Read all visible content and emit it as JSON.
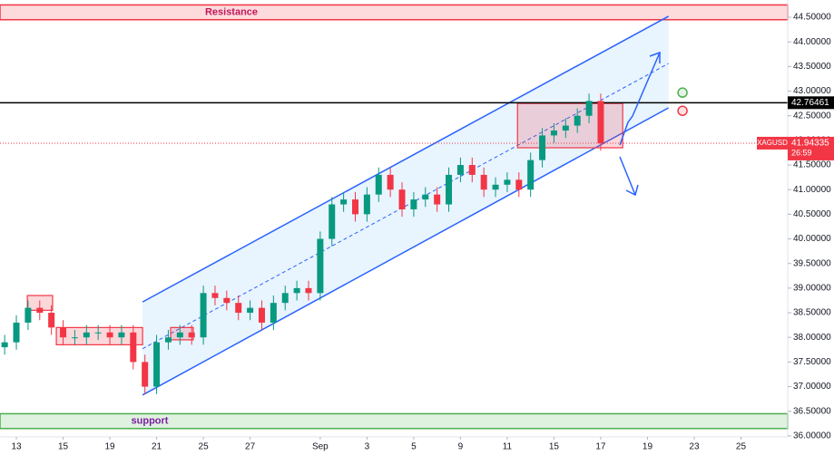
{
  "chart_data": {
    "type": "candlestick",
    "symbol": "XAGUSD",
    "x": [
      -0.5,
      0,
      0.5,
      1,
      1.5,
      2,
      2.5,
      3,
      3.5,
      4,
      4.5,
      5,
      5.5,
      6,
      6.5,
      7,
      7.5,
      8,
      8.5,
      9,
      9.5,
      10,
      10.5,
      11,
      11.5,
      12,
      12.5,
      13,
      13.5,
      14,
      14.5,
      15,
      15.5,
      16,
      16.5,
      17,
      17.5,
      18,
      18.5,
      19,
      19.5,
      20,
      20.5,
      21,
      21.5,
      22,
      22.5,
      23,
      23.5,
      24,
      24.5,
      25
    ],
    "open": [
      37.8,
      37.9,
      38.3,
      38.6,
      38.5,
      38.2,
      38.0,
      38.0,
      38.1,
      38.1,
      38.0,
      38.1,
      37.5,
      37.0,
      37.9,
      38.0,
      38.1,
      38.0,
      38.9,
      38.8,
      38.7,
      38.5,
      38.6,
      38.3,
      38.7,
      38.9,
      39.0,
      38.9,
      40.0,
      40.7,
      40.8,
      40.5,
      40.9,
      41.3,
      41.0,
      40.6,
      40.8,
      40.9,
      40.7,
      41.3,
      41.5,
      41.3,
      41.0,
      41.1,
      41.2,
      41.0,
      41.6,
      42.1,
      42.2,
      42.3,
      42.5,
      42.8
    ],
    "high": [
      38.05,
      38.45,
      38.75,
      38.75,
      38.65,
      38.35,
      38.15,
      38.25,
      38.25,
      38.25,
      38.25,
      38.25,
      37.65,
      38.05,
      38.15,
      38.25,
      38.25,
      39.05,
      39.05,
      38.95,
      38.85,
      38.75,
      38.75,
      38.85,
      39.05,
      39.15,
      39.15,
      40.15,
      40.85,
      40.95,
      40.95,
      41.05,
      41.45,
      41.45,
      41.15,
      40.95,
      41.05,
      41.05,
      41.45,
      41.65,
      41.65,
      41.45,
      41.25,
      41.35,
      41.35,
      41.75,
      42.25,
      42.35,
      42.45,
      42.65,
      42.95,
      42.95
    ],
    "low": [
      37.65,
      37.75,
      38.15,
      38.35,
      38.05,
      37.85,
      37.85,
      37.85,
      37.95,
      37.85,
      37.85,
      37.35,
      36.85,
      36.85,
      37.75,
      37.85,
      37.85,
      37.85,
      38.65,
      38.55,
      38.35,
      38.35,
      38.15,
      38.15,
      38.55,
      38.75,
      38.75,
      38.75,
      39.85,
      40.55,
      40.35,
      40.35,
      40.75,
      40.85,
      40.45,
      40.45,
      40.65,
      40.55,
      40.55,
      41.15,
      41.15,
      40.85,
      40.85,
      40.95,
      40.85,
      40.85,
      41.45,
      41.95,
      42.05,
      42.15,
      42.35,
      41.79
    ],
    "close": [
      37.9,
      38.3,
      38.6,
      38.5,
      38.2,
      38.0,
      38.0,
      38.1,
      38.1,
      38.0,
      38.1,
      37.5,
      37.0,
      37.9,
      38.0,
      38.1,
      38.0,
      38.9,
      38.8,
      38.7,
      38.5,
      38.6,
      38.3,
      38.7,
      38.9,
      39.0,
      38.9,
      40.0,
      40.7,
      40.8,
      40.5,
      40.9,
      41.3,
      41.0,
      40.6,
      40.8,
      40.9,
      40.7,
      41.3,
      41.5,
      41.3,
      41.0,
      41.1,
      41.2,
      41.0,
      41.6,
      42.1,
      42.2,
      42.3,
      42.5,
      42.8,
      41.94
    ],
    "up_color": "#089981",
    "down_color": "#f23645",
    "xlim": [
      -0.7,
      33
    ],
    "ylim": [
      35.98,
      44.85
    ],
    "xticks": [
      {
        "value": 0,
        "label": "13"
      },
      {
        "value": 2,
        "label": "15"
      },
      {
        "value": 4,
        "label": "19"
      },
      {
        "value": 6,
        "label": "21"
      },
      {
        "value": 8,
        "label": "25"
      },
      {
        "value": 10,
        "label": "27"
      },
      {
        "value": 13,
        "label": "Sep"
      },
      {
        "value": 15,
        "label": "3"
      },
      {
        "value": 17,
        "label": "5"
      },
      {
        "value": 19,
        "label": "9"
      },
      {
        "value": 21,
        "label": "11"
      },
      {
        "value": 23,
        "label": "15"
      },
      {
        "value": 25,
        "label": "17"
      },
      {
        "value": 27,
        "label": "19"
      },
      {
        "value": 29,
        "label": "23"
      },
      {
        "value": 31,
        "label": "25"
      }
    ],
    "yticks": [
      {
        "value": 36,
        "label": "36.00000"
      },
      {
        "value": 36.5,
        "label": "36.50000"
      },
      {
        "value": 37,
        "label": "37.00000"
      },
      {
        "value": 37.5,
        "label": "37.50000"
      },
      {
        "value": 38,
        "label": "38.00000"
      },
      {
        "value": 38.5,
        "label": "38.50000"
      },
      {
        "value": 39,
        "label": "39.00000"
      },
      {
        "value": 39.5,
        "label": "39.50000"
      },
      {
        "value": 40,
        "label": "40.00000"
      },
      {
        "value": 40.5,
        "label": "40.50000"
      },
      {
        "value": 41,
        "label": "41.00000"
      },
      {
        "value": 41.5,
        "label": "41.50000"
      },
      {
        "value": 42,
        "label": "42.00000"
      },
      {
        "value": 42.5,
        "label": "42.50000"
      },
      {
        "value": 43,
        "label": "43.00000"
      },
      {
        "value": 43.5,
        "label": "43.50000"
      },
      {
        "value": 44,
        "label": "44.00000"
      },
      {
        "value": 44.5,
        "label": "44.50000"
      }
    ],
    "price_line": 42.76461,
    "last_price": 41.94335,
    "countdown": "26:59",
    "zones": [
      {
        "label": "Resistance",
        "y": [
          44.45,
          44.75
        ],
        "color": "#f23645"
      },
      {
        "label": "support",
        "y": [
          36.15,
          36.45
        ],
        "color": "#4caf50"
      }
    ],
    "boxes": [
      {
        "x": [
          0.47,
          1.55
        ],
        "y": [
          38.55,
          38.85
        ]
      },
      {
        "x": [
          1.71,
          5.4
        ],
        "y": [
          37.85,
          38.2
        ]
      },
      {
        "x": [
          6.6,
          7.57
        ],
        "y": [
          37.95,
          38.2
        ]
      },
      {
        "x": [
          21.44,
          25.94
        ],
        "y": [
          41.85,
          42.75
        ]
      }
    ],
    "channel": {
      "x": [
        5.4,
        27.9
      ],
      "upper": [
        38.72,
        44.52
      ],
      "lower": [
        36.83,
        42.66
      ],
      "middle": [
        37.77,
        43.56
      ]
    },
    "markers": [
      {
        "x": 28.5,
        "y": 42.97,
        "color": "#4caf50"
      },
      {
        "x": 28.5,
        "y": 42.6,
        "color": "#f23645"
      }
    ]
  }
}
